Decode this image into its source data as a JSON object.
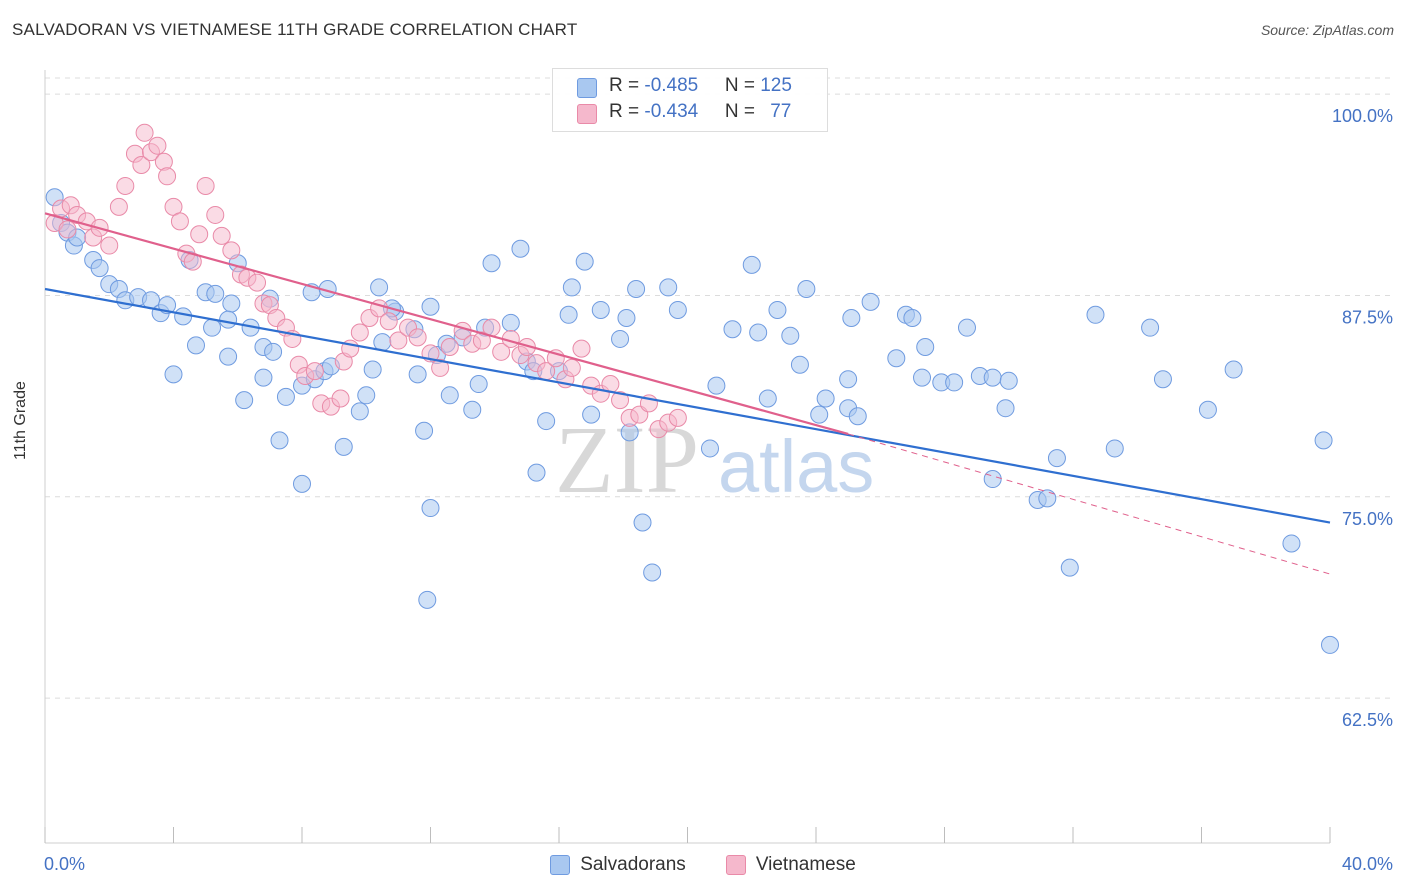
{
  "chart_data": {
    "type": "scatter",
    "title": "SALVADORAN VS VIETNAMESE 11TH GRADE CORRELATION CHART",
    "source": "Source: ZipAtlas.com",
    "xlabel": "",
    "ylabel": "11th Grade",
    "xlim": [
      0,
      40
    ],
    "ylim": [
      53.5,
      101.5
    ],
    "x_tick_labels": [
      "0.0%",
      "40.0%"
    ],
    "y_ticks": [
      62.5,
      75.0,
      87.5,
      100.0
    ],
    "y_tick_labels": [
      "62.5%",
      "75.0%",
      "87.5%",
      "100.0%"
    ],
    "watermark": {
      "zip": "ZIP",
      "atlas": "atlas"
    },
    "colors": {
      "salvadorans_fill": "#a9c8f0",
      "salvadorans_stroke": "#6f9be0",
      "salvadorans_line": "#2f6fd0",
      "vietnamese_fill": "#f5b8cc",
      "vietnamese_stroke": "#e98aa8",
      "vietnamese_line": "#e0608c",
      "tick_label": "#4472c4"
    },
    "legend": {
      "rows": [
        {
          "r_label": "R = ",
          "r_value": "-0.485",
          "n_label": "N = ",
          "n_value": "125"
        },
        {
          "r_label": "R = ",
          "r_value": "-0.434",
          "n_label": "N = ",
          "n_value": "77"
        }
      ]
    },
    "series": [
      {
        "name": "Salvadorans",
        "trend": {
          "x0": 0,
          "y0": 87.9,
          "x1": 40,
          "y1": 73.4
        },
        "points": [
          [
            0.3,
            93.6
          ],
          [
            0.5,
            92.0
          ],
          [
            0.7,
            91.4
          ],
          [
            0.9,
            90.6
          ],
          [
            1.0,
            91.1
          ],
          [
            1.5,
            89.7
          ],
          [
            1.7,
            89.2
          ],
          [
            2.0,
            88.2
          ],
          [
            2.3,
            87.9
          ],
          [
            2.5,
            87.2
          ],
          [
            2.9,
            87.4
          ],
          [
            3.3,
            87.2
          ],
          [
            3.6,
            86.4
          ],
          [
            3.8,
            86.9
          ],
          [
            4.5,
            89.7
          ],
          [
            4.3,
            86.2
          ],
          [
            5.0,
            87.7
          ],
          [
            5.3,
            87.6
          ],
          [
            5.8,
            87.0
          ],
          [
            6.0,
            89.5
          ],
          [
            4.7,
            84.4
          ],
          [
            5.2,
            85.5
          ],
          [
            5.7,
            86.0
          ],
          [
            5.7,
            83.7
          ],
          [
            6.4,
            85.5
          ],
          [
            6.8,
            84.3
          ],
          [
            7.1,
            84.0
          ],
          [
            7.0,
            87.3
          ],
          [
            6.2,
            81.0
          ],
          [
            6.8,
            82.4
          ],
          [
            4.0,
            82.6
          ],
          [
            7.5,
            81.2
          ],
          [
            7.3,
            78.5
          ],
          [
            8.0,
            81.9
          ],
          [
            8.4,
            82.3
          ],
          [
            8.7,
            82.8
          ],
          [
            8.9,
            83.1
          ],
          [
            8.3,
            87.7
          ],
          [
            8.8,
            87.9
          ],
          [
            8.0,
            75.8
          ],
          [
            9.3,
            78.1
          ],
          [
            10.0,
            81.3
          ],
          [
            9.8,
            80.3
          ],
          [
            10.2,
            82.9
          ],
          [
            10.5,
            84.6
          ],
          [
            10.9,
            86.5
          ],
          [
            10.8,
            86.7
          ],
          [
            10.4,
            88.0
          ],
          [
            11.5,
            85.4
          ],
          [
            12.0,
            86.8
          ],
          [
            11.6,
            82.6
          ],
          [
            11.8,
            79.1
          ],
          [
            12.2,
            83.8
          ],
          [
            12.5,
            84.5
          ],
          [
            13.0,
            84.9
          ],
          [
            12.0,
            74.3
          ],
          [
            11.9,
            68.6
          ],
          [
            12.6,
            81.3
          ],
          [
            13.7,
            85.5
          ],
          [
            13.3,
            80.4
          ],
          [
            13.5,
            82.0
          ],
          [
            13.9,
            89.5
          ],
          [
            14.5,
            85.8
          ],
          [
            14.8,
            90.4
          ],
          [
            15.0,
            83.4
          ],
          [
            15.2,
            82.8
          ],
          [
            15.3,
            76.5
          ],
          [
            15.6,
            79.7
          ],
          [
            16.3,
            86.3
          ],
          [
            16.8,
            89.6
          ],
          [
            16.4,
            88.0
          ],
          [
            16.0,
            82.8
          ],
          [
            17.0,
            80.1
          ],
          [
            17.3,
            86.6
          ],
          [
            17.9,
            84.8
          ],
          [
            18.1,
            86.1
          ],
          [
            18.2,
            79.0
          ],
          [
            18.4,
            87.9
          ],
          [
            18.6,
            73.4
          ],
          [
            18.9,
            70.3
          ],
          [
            19.4,
            88.0
          ],
          [
            19.7,
            86.6
          ],
          [
            20.7,
            78.0
          ],
          [
            20.9,
            81.9
          ],
          [
            21.4,
            85.4
          ],
          [
            22.0,
            89.4
          ],
          [
            22.5,
            81.1
          ],
          [
            22.2,
            85.2
          ],
          [
            22.8,
            86.6
          ],
          [
            23.2,
            85.0
          ],
          [
            23.5,
            83.2
          ],
          [
            23.7,
            87.9
          ],
          [
            24.1,
            80.1
          ],
          [
            24.3,
            81.1
          ],
          [
            25.0,
            80.5
          ],
          [
            25.0,
            82.3
          ],
          [
            25.1,
            86.1
          ],
          [
            25.3,
            80.0
          ],
          [
            25.7,
            87.1
          ],
          [
            26.5,
            83.6
          ],
          [
            26.8,
            86.3
          ],
          [
            27.3,
            82.4
          ],
          [
            27.0,
            86.1
          ],
          [
            27.4,
            84.3
          ],
          [
            27.9,
            82.1
          ],
          [
            28.3,
            82.1
          ],
          [
            28.7,
            85.5
          ],
          [
            29.1,
            82.5
          ],
          [
            29.5,
            82.4
          ],
          [
            29.9,
            80.5
          ],
          [
            30.0,
            82.2
          ],
          [
            29.5,
            76.1
          ],
          [
            30.9,
            74.8
          ],
          [
            31.2,
            74.9
          ],
          [
            31.5,
            77.4
          ],
          [
            31.9,
            70.6
          ],
          [
            32.7,
            86.3
          ],
          [
            33.3,
            78.0
          ],
          [
            34.4,
            85.5
          ],
          [
            34.8,
            82.3
          ],
          [
            36.2,
            80.4
          ],
          [
            37.0,
            82.9
          ],
          [
            38.8,
            72.1
          ],
          [
            39.8,
            78.5
          ],
          [
            40.0,
            65.8
          ]
        ]
      },
      {
        "name": "Vietnamese",
        "trend": {
          "x0": 0,
          "y0": 92.6,
          "x1": 25.0,
          "y1": 78.9,
          "dash_x1": 40,
          "dash_y1": 70.2
        },
        "points": [
          [
            0.3,
            92.0
          ],
          [
            0.5,
            92.9
          ],
          [
            0.7,
            91.6
          ],
          [
            0.8,
            93.1
          ],
          [
            1.0,
            92.5
          ],
          [
            1.3,
            92.1
          ],
          [
            1.5,
            91.1
          ],
          [
            1.7,
            91.7
          ],
          [
            2.0,
            90.6
          ],
          [
            2.3,
            93.0
          ],
          [
            2.5,
            94.3
          ],
          [
            2.8,
            96.3
          ],
          [
            3.0,
            95.6
          ],
          [
            3.1,
            97.6
          ],
          [
            3.3,
            96.4
          ],
          [
            3.5,
            96.8
          ],
          [
            3.7,
            95.8
          ],
          [
            3.8,
            94.9
          ],
          [
            4.0,
            93.0
          ],
          [
            4.2,
            92.1
          ],
          [
            4.4,
            90.1
          ],
          [
            4.6,
            89.6
          ],
          [
            4.8,
            91.3
          ],
          [
            5.0,
            94.3
          ],
          [
            5.3,
            92.5
          ],
          [
            5.5,
            91.2
          ],
          [
            5.8,
            90.3
          ],
          [
            6.1,
            88.8
          ],
          [
            6.3,
            88.6
          ],
          [
            6.6,
            88.3
          ],
          [
            6.8,
            87.0
          ],
          [
            7.0,
            86.9
          ],
          [
            7.2,
            86.1
          ],
          [
            7.5,
            85.5
          ],
          [
            7.7,
            84.8
          ],
          [
            7.9,
            83.2
          ],
          [
            8.1,
            82.5
          ],
          [
            8.4,
            82.8
          ],
          [
            8.6,
            80.8
          ],
          [
            8.9,
            80.6
          ],
          [
            9.2,
            81.1
          ],
          [
            9.3,
            83.4
          ],
          [
            9.5,
            84.2
          ],
          [
            9.8,
            85.2
          ],
          [
            10.1,
            86.1
          ],
          [
            10.4,
            86.7
          ],
          [
            10.7,
            85.9
          ],
          [
            11.0,
            84.7
          ],
          [
            11.3,
            85.5
          ],
          [
            11.6,
            84.9
          ],
          [
            12.0,
            83.9
          ],
          [
            12.3,
            83.0
          ],
          [
            12.6,
            84.3
          ],
          [
            13.0,
            85.3
          ],
          [
            13.3,
            84.5
          ],
          [
            13.6,
            84.7
          ],
          [
            13.9,
            85.5
          ],
          [
            14.2,
            84.0
          ],
          [
            14.5,
            84.8
          ],
          [
            14.8,
            83.8
          ],
          [
            15.0,
            84.3
          ],
          [
            15.3,
            83.3
          ],
          [
            15.6,
            82.8
          ],
          [
            15.9,
            83.6
          ],
          [
            16.2,
            82.3
          ],
          [
            16.4,
            83.0
          ],
          [
            16.7,
            84.2
          ],
          [
            17.0,
            81.9
          ],
          [
            17.3,
            81.4
          ],
          [
            17.6,
            82.0
          ],
          [
            17.9,
            81.0
          ],
          [
            18.2,
            79.9
          ],
          [
            18.5,
            80.1
          ],
          [
            18.8,
            80.8
          ],
          [
            19.1,
            79.2
          ],
          [
            19.4,
            79.6
          ],
          [
            19.7,
            79.9
          ]
        ]
      }
    ]
  }
}
